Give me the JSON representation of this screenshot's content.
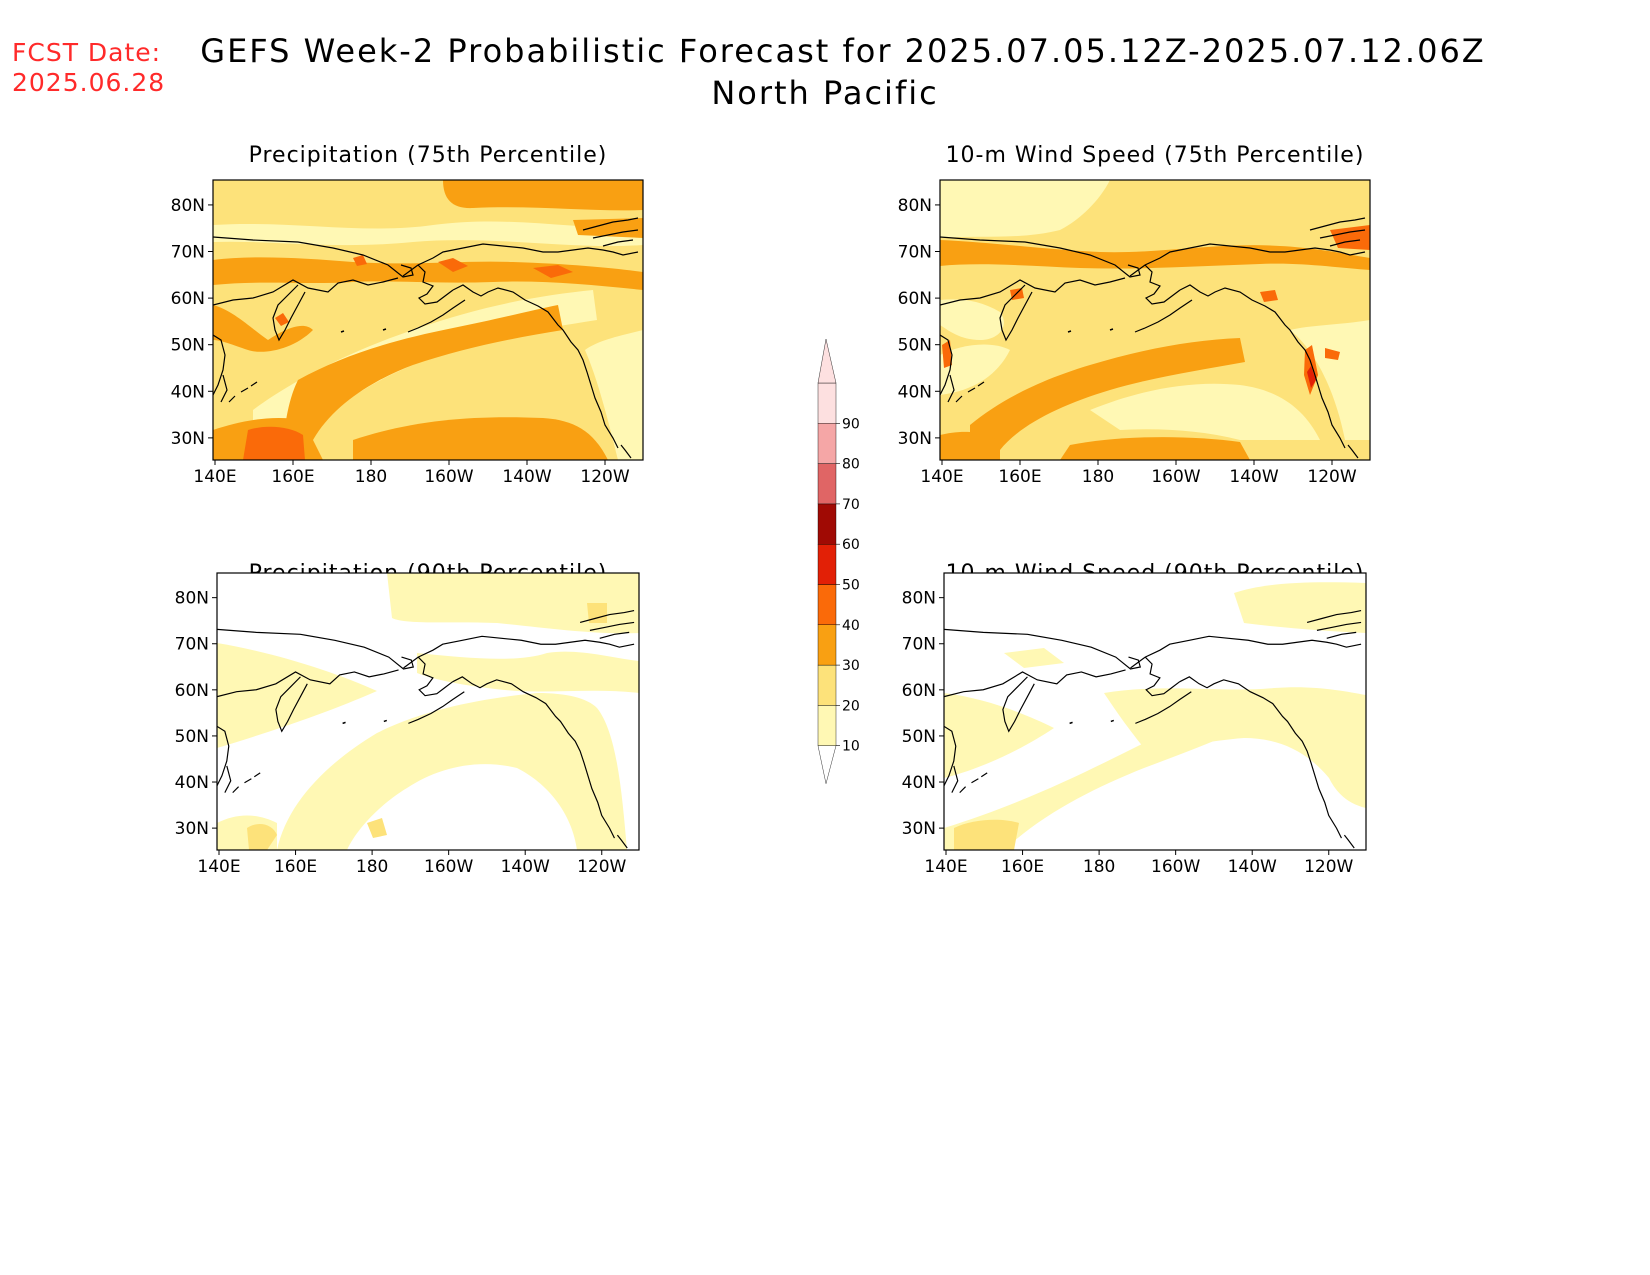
{
  "header": {
    "fcst_label": "FCST Date:",
    "fcst_date": "2025.06.28",
    "title_line1": "GEFS Week-2 Probabilistic Forecast for 2025.07.05.12Z-2025.07.12.06Z",
    "title_line2": "North Pacific"
  },
  "panels": [
    {
      "id": "precip75",
      "title": "Precipitation (75th Percentile)"
    },
    {
      "id": "wind75",
      "title": "10-m Wind Speed (75th Percentile)"
    },
    {
      "id": "precip90",
      "title": "Precipitation (90th Percentile)"
    },
    {
      "id": "wind90",
      "title": "10-m Wind Speed (90th Percentile)"
    }
  ],
  "axes": {
    "lon_labels": [
      "140E",
      "160E",
      "180",
      "160W",
      "140W",
      "120W"
    ],
    "lat_labels": [
      "80N",
      "70N",
      "60N",
      "50N",
      "40N",
      "30N"
    ]
  },
  "colorbar": {
    "levels": [
      "10",
      "20",
      "30",
      "40",
      "50",
      "60",
      "70",
      "80",
      "90"
    ],
    "colors": [
      "#fff8b4",
      "#fde27a",
      "#f9a012",
      "#fa6a09",
      "#e22006",
      "#a00a04",
      "#e06565",
      "#f5a6a6",
      "#fde0e0"
    ]
  }
}
